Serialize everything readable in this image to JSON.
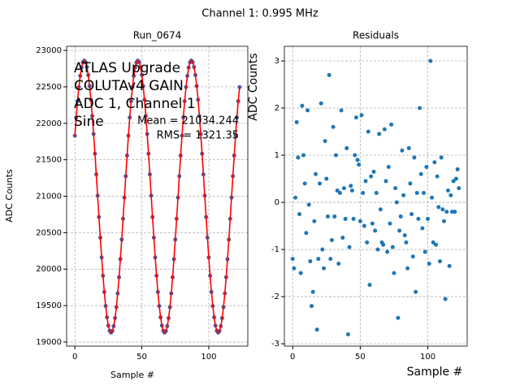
{
  "title": "Channel 1: 0.995 MHz",
  "chart_data": [
    {
      "type": "scatter",
      "title": "Run_0674",
      "x_label": "Sample #",
      "y_label": "ADC Counts",
      "annotations": [
        "ATLAS Upgrade",
        "COLUTAv4 GAIN",
        "ADC 1, Channel 1",
        "Sine"
      ],
      "stats": [
        "Mean = 21034.244",
        "RMS = 1321.35"
      ],
      "x": [
        0,
        1,
        2,
        3,
        4,
        5,
        6,
        7,
        8,
        9,
        10,
        11,
        12,
        13,
        14,
        15,
        16,
        17,
        18,
        19,
        20,
        21,
        22,
        23,
        24,
        25,
        26,
        27,
        28,
        29,
        30,
        31,
        32,
        33,
        34,
        35,
        36,
        37,
        38,
        39,
        40,
        41,
        42,
        43,
        44,
        45,
        46,
        47,
        48,
        49,
        50,
        51,
        52,
        53,
        54,
        55,
        56,
        57,
        58,
        59,
        60,
        61,
        62,
        63,
        64,
        65,
        66,
        67,
        68,
        69,
        70,
        71,
        72,
        73,
        74,
        75,
        76,
        77,
        78,
        79,
        80,
        81,
        82,
        83,
        84,
        85,
        86,
        87,
        88,
        89,
        90,
        91,
        92,
        93,
        94,
        95,
        96,
        97,
        98,
        99,
        100,
        101,
        102,
        103,
        104,
        105,
        106,
        107,
        108,
        109,
        110,
        111,
        112,
        113,
        114,
        115,
        116,
        117,
        118,
        119,
        120,
        121,
        122,
        123
      ],
      "series": [
        {
          "type": "scatter",
          "color": "#4a5fa0",
          "values": [
            21830,
            22080,
            22304,
            22496,
            22651,
            22765,
            22836,
            22860,
            22839,
            22772,
            22662,
            22511,
            22323,
            22101,
            21853,
            21584,
            21299,
            21008,
            20715,
            20432,
            20160,
            19910,
            19686,
            19494,
            19339,
            19225,
            19154,
            19130,
            19151,
            19218,
            19328,
            19479,
            19667,
            19889,
            20137,
            20406,
            20691,
            20982,
            21275,
            21558,
            21830,
            22080,
            22304,
            22496,
            22651,
            22765,
            22836,
            22860,
            22839,
            22772,
            22662,
            22511,
            22323,
            22101,
            21853,
            21584,
            21299,
            21008,
            20715,
            20432,
            20160,
            19910,
            19686,
            19494,
            19339,
            19225,
            19154,
            19130,
            19151,
            19218,
            19328,
            19479,
            19667,
            19889,
            20137,
            20406,
            20691,
            20982,
            21275,
            21558,
            21830,
            22080,
            22304,
            22496,
            22651,
            22765,
            22836,
            22860,
            22839,
            22772,
            22662,
            22511,
            22323,
            22101,
            21853,
            21584,
            21299,
            21008,
            20715,
            20432,
            20160,
            19910,
            19686,
            19494,
            19339,
            19225,
            19154,
            19130,
            19151,
            19218,
            19328,
            19479,
            19667,
            19889,
            20137,
            20406,
            20691,
            20982,
            21275,
            21558,
            21830,
            22080,
            22304,
            22496
          ]
        },
        {
          "type": "line",
          "color": "red",
          "values": [
            21830,
            22080,
            22304,
            22496,
            22651,
            22765,
            22836,
            22860,
            22839,
            22772,
            22662,
            22511,
            22323,
            22101,
            21853,
            21584,
            21299,
            21008,
            20715,
            20432,
            20160,
            19910,
            19686,
            19494,
            19339,
            19225,
            19154,
            19130,
            19151,
            19218,
            19328,
            19479,
            19667,
            19889,
            20137,
            20406,
            20691,
            20982,
            21275,
            21558,
            21830,
            22080,
            22304,
            22496,
            22651,
            22765,
            22836,
            22860,
            22839,
            22772,
            22662,
            22511,
            22323,
            22101,
            21853,
            21584,
            21299,
            21008,
            20715,
            20432,
            20160,
            19910,
            19686,
            19494,
            19339,
            19225,
            19154,
            19130,
            19151,
            19218,
            19328,
            19479,
            19667,
            19889,
            20137,
            20406,
            20691,
            20982,
            21275,
            21558,
            21830,
            22080,
            22304,
            22496,
            22651,
            22765,
            22836,
            22860,
            22839,
            22772,
            22662,
            22511,
            22323,
            22101,
            21853,
            21584,
            21299,
            21008,
            20715,
            20432,
            20160,
            19910,
            19686,
            19494,
            19339,
            19225,
            19154,
            19130,
            19151,
            19218,
            19328,
            19479,
            19667,
            19889,
            20137,
            20406,
            20691,
            20982,
            21275,
            21558,
            21830,
            22080,
            22304,
            22496
          ]
        }
      ],
      "xlim": [
        -6.15,
        129.15
      ],
      "xticks": [
        0,
        50,
        100
      ],
      "ylim": [
        18944,
        23056
      ],
      "yticks": [
        19000,
        19500,
        20000,
        20500,
        21000,
        21500,
        22000,
        22500,
        23000
      ],
      "grid": true
    },
    {
      "type": "scatter",
      "title": "Residuals",
      "x_label": "Sample #",
      "y_label": "ADC Counts",
      "x": [
        0,
        1,
        2,
        3,
        4,
        5,
        6,
        7,
        8,
        9,
        10,
        11,
        12,
        13,
        14,
        15,
        16,
        17,
        18,
        19,
        20,
        21,
        22,
        23,
        24,
        25,
        26,
        27,
        28,
        29,
        30,
        31,
        32,
        33,
        34,
        35,
        36,
        37,
        38,
        39,
        40,
        41,
        42,
        43,
        44,
        45,
        46,
        47,
        48,
        49,
        50,
        51,
        52,
        53,
        54,
        55,
        56,
        57,
        58,
        59,
        60,
        61,
        62,
        63,
        64,
        65,
        66,
        67,
        68,
        69,
        70,
        71,
        72,
        73,
        74,
        75,
        76,
        77,
        78,
        79,
        80,
        81,
        82,
        83,
        84,
        85,
        86,
        87,
        88,
        89,
        90,
        91,
        92,
        93,
        94,
        95,
        96,
        97,
        98,
        99,
        100,
        101,
        102,
        103,
        104,
        105,
        106,
        107,
        108,
        109,
        110,
        111,
        112,
        113,
        114,
        115,
        116,
        117,
        118,
        119,
        120,
        121,
        122,
        123
      ],
      "series": [
        {
          "type": "scatter",
          "color": "#1f77b4",
          "values": [
            -1.2,
            -1.4,
            0.1,
            1.7,
            0.95,
            -0.25,
            -1.5,
            2.05,
            1.0,
            0.4,
            -0.65,
            1.95,
            -0.05,
            -1.25,
            -2.2,
            -1.9,
            -0.4,
            0.6,
            -2.7,
            -1.2,
            0.4,
            2.1,
            -1.0,
            -1.4,
            1.3,
            0.5,
            -0.3,
            2.7,
            -1.2,
            -0.8,
            1.6,
            -0.3,
            1.0,
            0.25,
            -1.3,
            0.2,
            1.95,
            -0.75,
            0.3,
            -0.35,
            1.15,
            -2.8,
            -0.95,
            0.35,
            0.25,
            -0.35,
            1.0,
            1.8,
            0.9,
            0.8,
            -0.4,
            1.85,
            0.2,
            -0.5,
            0.45,
            -0.85,
            1.5,
            -1.75,
            0.55,
            -0.45,
            0.65,
            -0.6,
            0.2,
            -1.0,
            1.45,
            -0.15,
            -0.85,
            -0.9,
            1.55,
            0.45,
            -1.05,
            0.75,
            -0.45,
            1.65,
            -0.95,
            -1.5,
            0.3,
            0.0,
            -2.45,
            -0.6,
            -0.3,
            1.1,
            0.15,
            -0.7,
            -0.85,
            -1.4,
            1.15,
            0.4,
            -0.25,
            -1.15,
            0.95,
            -1.9,
            0.2,
            -0.35,
            2.0,
            0.6,
            -0.55,
            0.2,
            -1.05,
            0.75,
            -0.35,
            -1.3,
            3.0,
            0.1,
            -0.85,
            0.85,
            -0.9,
            0.55,
            -0.1,
            -1.25,
            0.95,
            -0.15,
            -0.4,
            -2.05,
            -0.2,
            0.25,
            -1.35,
            0.15,
            -0.2,
            0.45,
            -0.2,
            0.5,
            0.7,
            0.3
          ]
        }
      ],
      "xlim": [
        -6.15,
        129.15
      ],
      "xticks": [
        0,
        50,
        100
      ],
      "ylim": [
        -3.05,
        3.31
      ],
      "yticks": [
        -3,
        -2,
        -1,
        0,
        1,
        2,
        3
      ],
      "grid": true
    }
  ]
}
